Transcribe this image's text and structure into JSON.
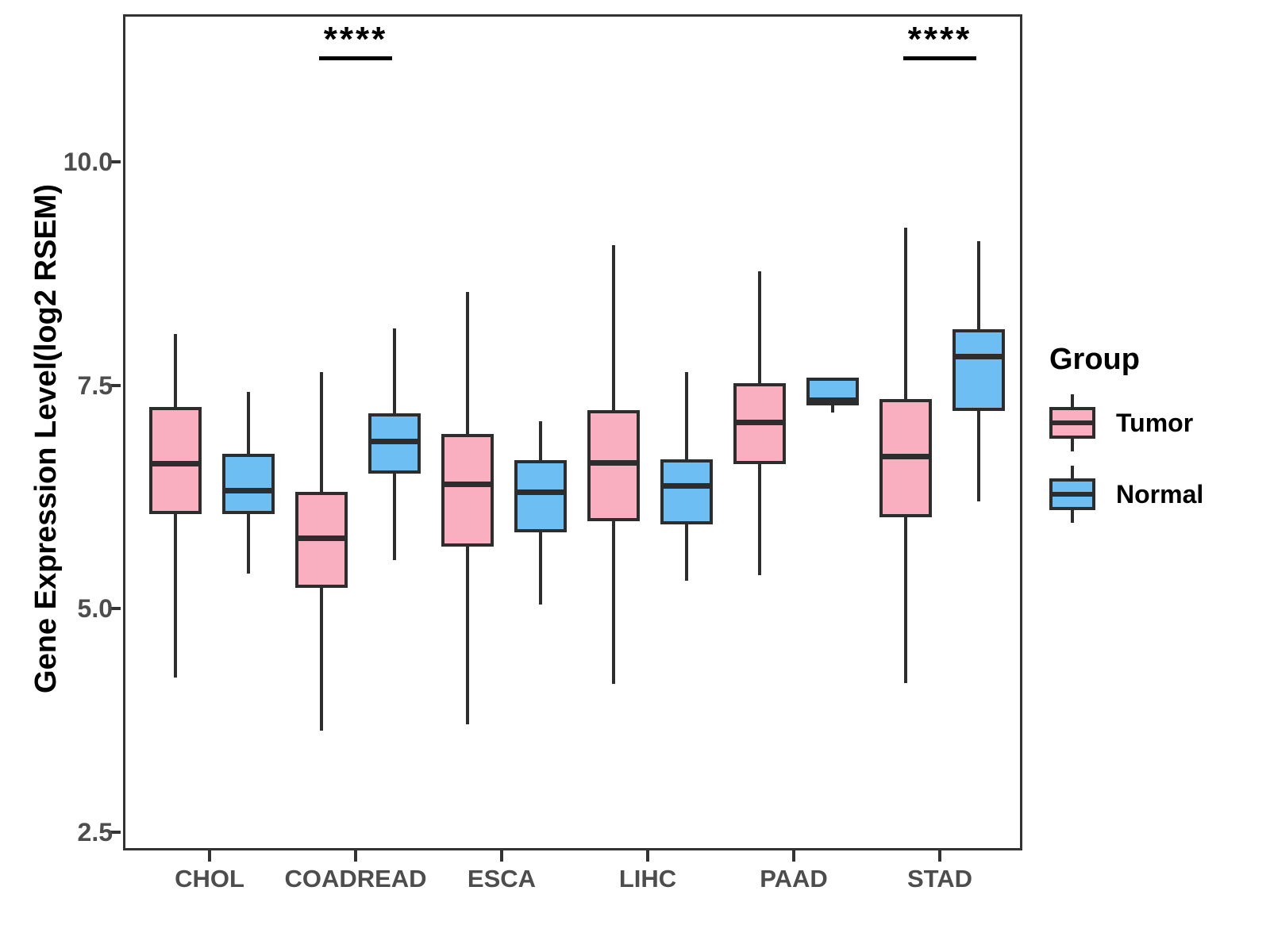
{
  "chart_data": {
    "type": "boxplot",
    "title": "",
    "xlabel": "",
    "ylabel": "Gene Expression Level(log2 RSEM)",
    "categories": [
      "CHOL",
      "COADREAD",
      "ESCA",
      "LIHC",
      "PAAD",
      "STAD"
    ],
    "yticks": [
      "2.5",
      "5.0",
      "7.5",
      "10.0"
    ],
    "ytick_values": [
      2.5,
      5.0,
      7.5,
      10.0
    ],
    "ylim": [
      2.29,
      11.65
    ],
    "grid": false,
    "colors": {
      "tumor_fill": "#F9AFBF",
      "normal_fill": "#6DBEF3",
      "stroke": "#2D2D2D",
      "axis_text": "#4D4D4D",
      "panel_border": "#333333"
    },
    "legend": {
      "title": "Group",
      "position": "right",
      "entries": [
        {
          "label": "Tumor",
          "color": "#F9AFBF"
        },
        {
          "label": "Normal",
          "color": "#6DBEF3"
        }
      ]
    },
    "series": [
      {
        "name": "Tumor",
        "color": "#F9AFBF",
        "boxes": [
          {
            "category": "CHOL",
            "min": 4.25,
            "q1": 6.08,
            "median": 6.65,
            "q3": 7.28,
            "max": 8.1
          },
          {
            "category": "COADREAD",
            "min": 3.66,
            "q1": 5.26,
            "median": 5.81,
            "q3": 6.33,
            "max": 7.67
          },
          {
            "category": "ESCA",
            "min": 3.73,
            "q1": 5.72,
            "median": 6.42,
            "q3": 6.98,
            "max": 8.57
          },
          {
            "category": "LIHC",
            "min": 4.18,
            "q1": 6.0,
            "median": 6.66,
            "q3": 7.25,
            "max": 9.09
          },
          {
            "category": "PAAD",
            "min": 5.4,
            "q1": 6.64,
            "median": 7.11,
            "q3": 7.55,
            "max": 8.8
          },
          {
            "category": "STAD",
            "min": 4.19,
            "q1": 6.05,
            "median": 6.73,
            "q3": 7.37,
            "max": 9.29
          }
        ]
      },
      {
        "name": "Normal",
        "color": "#6DBEF3",
        "boxes": [
          {
            "category": "CHOL",
            "min": 5.42,
            "q1": 6.08,
            "median": 6.35,
            "q3": 6.76,
            "max": 7.45
          },
          {
            "category": "COADREAD",
            "min": 5.57,
            "q1": 6.54,
            "median": 6.9,
            "q3": 7.21,
            "max": 8.16
          },
          {
            "category": "ESCA",
            "min": 5.07,
            "q1": 5.88,
            "median": 6.33,
            "q3": 6.69,
            "max": 7.12
          },
          {
            "category": "LIHC",
            "min": 5.34,
            "q1": 5.97,
            "median": 6.4,
            "q3": 6.7,
            "max": 7.67
          },
          {
            "category": "PAAD",
            "min": 7.22,
            "q1": 7.3,
            "median": 7.36,
            "q3": 7.61,
            "max": 7.61
          },
          {
            "category": "STAD",
            "min": 6.23,
            "q1": 7.24,
            "median": 7.85,
            "q3": 8.15,
            "max": 9.14
          }
        ]
      }
    ],
    "significance": [
      {
        "category": "COADREAD",
        "label": "****"
      },
      {
        "category": "STAD",
        "label": "****"
      }
    ]
  }
}
